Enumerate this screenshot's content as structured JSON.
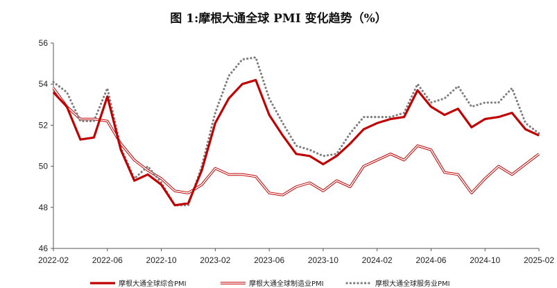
{
  "chart_data": {
    "type": "line",
    "title": "图 1:摩根大通全球 PMI 变化趋势（%）",
    "xlabel": "",
    "ylabel": "",
    "ylim": [
      46,
      56
    ],
    "yticks": [
      46,
      48,
      50,
      52,
      54,
      56
    ],
    "x": [
      "2022-02",
      "2022-03",
      "2022-04",
      "2022-05",
      "2022-06",
      "2022-07",
      "2022-08",
      "2022-09",
      "2022-10",
      "2022-11",
      "2022-12",
      "2023-01",
      "2023-02",
      "2023-03",
      "2023-04",
      "2023-05",
      "2023-06",
      "2023-07",
      "2023-08",
      "2023-09",
      "2023-10",
      "2023-11",
      "2023-12",
      "2024-01",
      "2024-02",
      "2024-03",
      "2024-04",
      "2024-05",
      "2024-06",
      "2024-07",
      "2024-08",
      "2024-09",
      "2024-10",
      "2024-11",
      "2024-12",
      "2025-01",
      "2025-02"
    ],
    "xtick_labels": [
      "2022-02",
      "2022-06",
      "2022-10",
      "2023-02",
      "2023-06",
      "2023-10",
      "2024-02",
      "2024-06",
      "2024-10",
      "2025-02"
    ],
    "series": [
      {
        "name": "摩根大通全球综合PMI",
        "style": "thick-solid",
        "color": "#c00000",
        "values": [
          53.6,
          52.9,
          51.3,
          51.4,
          53.4,
          50.8,
          49.3,
          49.6,
          49.1,
          48.1,
          48.2,
          49.8,
          52.1,
          53.3,
          54.0,
          54.2,
          52.5,
          51.5,
          50.6,
          50.5,
          50.1,
          50.5,
          51.1,
          51.8,
          52.1,
          52.3,
          52.4,
          53.7,
          52.9,
          52.5,
          52.8,
          51.9,
          52.3,
          52.4,
          52.6,
          51.8,
          51.5
        ]
      },
      {
        "name": "摩根大通全球制造业PMI",
        "style": "double-line",
        "color": "#c00000",
        "values": [
          53.8,
          52.9,
          52.3,
          52.3,
          52.2,
          51.1,
          50.3,
          49.8,
          49.4,
          48.8,
          48.7,
          49.1,
          49.9,
          49.6,
          49.6,
          49.5,
          48.7,
          48.6,
          49.0,
          49.2,
          48.8,
          49.3,
          49.0,
          50.0,
          50.3,
          50.6,
          50.3,
          51.0,
          50.8,
          49.7,
          49.6,
          48.7,
          49.4,
          50.0,
          49.6,
          50.1,
          50.6
        ]
      },
      {
        "name": "摩根大通全球服务业PMI",
        "style": "dotted",
        "color": "#7f7f7f",
        "values": [
          54.1,
          53.6,
          52.2,
          52.2,
          53.8,
          50.9,
          49.4,
          50.0,
          49.2,
          48.1,
          48.1,
          50.0,
          52.6,
          54.4,
          55.2,
          55.3,
          53.3,
          52.1,
          51.0,
          50.8,
          50.5,
          50.6,
          51.6,
          52.4,
          52.4,
          52.4,
          52.6,
          54.0,
          53.1,
          53.3,
          53.9,
          52.9,
          53.1,
          53.1,
          53.8,
          52.1,
          51.6
        ]
      }
    ],
    "legend": [
      "摩根大通全球综合PMI",
      "摩根大通全球制造业PMI",
      "摩根大通全球服务业PMI"
    ],
    "legend_position": "bottom",
    "grid": false
  }
}
